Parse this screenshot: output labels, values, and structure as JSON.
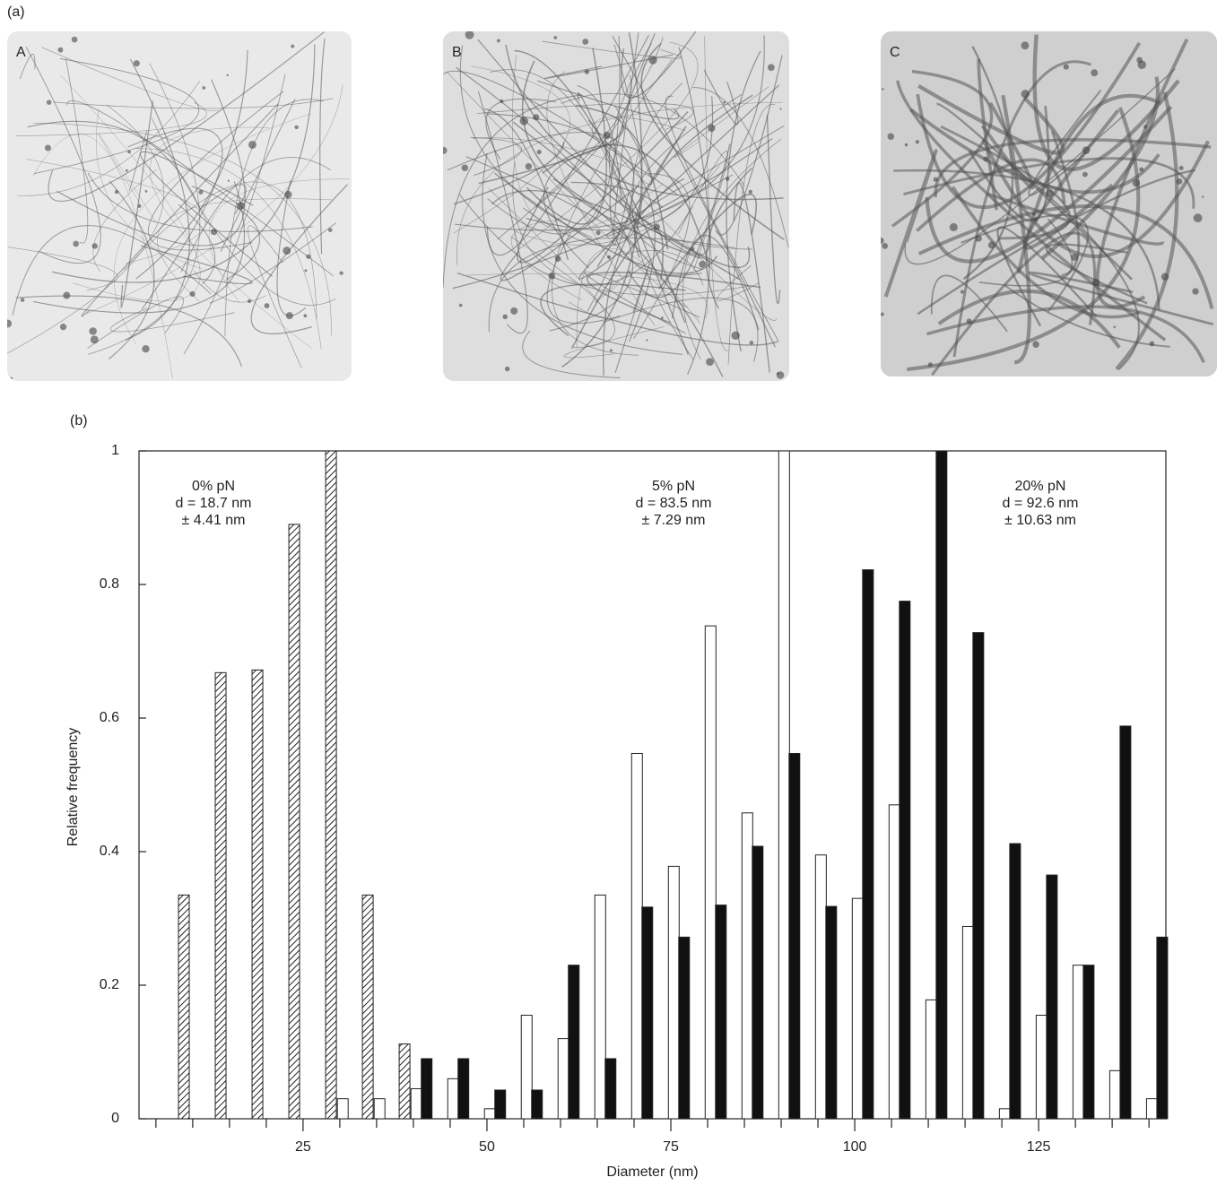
{
  "figure_label_a": "(a)",
  "panels": [
    {
      "label": "A"
    },
    {
      "label": "B"
    },
    {
      "label": "C"
    }
  ],
  "chart_data": {
    "type": "bar",
    "panel_label": "(b)",
    "x_label": "Diameter (nm)",
    "y_label": "Relative frequency",
    "xlim": [
      2.7,
      142.3
    ],
    "ylim": [
      0,
      1
    ],
    "xticks": [
      25,
      50,
      75,
      100,
      125
    ],
    "xminorticks": [
      5,
      10,
      15,
      20,
      30,
      35,
      40,
      45,
      55,
      60,
      65,
      70,
      80,
      85,
      90,
      95,
      105,
      110,
      115,
      120,
      130,
      135,
      140
    ],
    "yticks": [
      0,
      0.2,
      0.4,
      0.6,
      0.8,
      1
    ],
    "grid": false,
    "series": [
      {
        "name": "0% pN",
        "lines": [
          "d = 18.7 nm",
          "± 4.41 nm"
        ],
        "color": "#ffffff",
        "hatch": true,
        "x": [
          8.8,
          13.8,
          18.8,
          23.8,
          28.8,
          33.8,
          38.8
        ],
        "values": [
          0.335,
          0.668,
          0.672,
          0.89,
          1.0,
          0.335,
          0.112
        ]
      },
      {
        "name": "5% pN",
        "lines": [
          "d = 83.5 nm",
          "± 7.29 nm"
        ],
        "color": "#ffffff",
        "hatch": false,
        "x": [
          30.4,
          35.4,
          40.4,
          45.4,
          50.4,
          55.4,
          60.4,
          65.4,
          70.4,
          75.4,
          80.4,
          85.4,
          90.4,
          95.4,
          100.4,
          105.4,
          110.4,
          115.4,
          120.4,
          125.4,
          130.4,
          135.4,
          140.4
        ],
        "values": [
          0.03,
          0.03,
          0.045,
          0.06,
          0.015,
          0.155,
          0.12,
          0.335,
          0.547,
          0.378,
          0.738,
          0.458,
          1.0,
          0.395,
          0.33,
          0.47,
          0.178,
          0.288,
          0.015,
          0.155,
          0.23,
          0.072,
          0.03
        ]
      },
      {
        "name": "20% pN",
        "lines": [
          "d = 92.6 nm",
          "± 10.63 nm"
        ],
        "color": "#111111",
        "hatch": false,
        "x": [
          41.8,
          46.8,
          51.8,
          56.8,
          61.8,
          66.8,
          71.8,
          76.8,
          81.8,
          86.8,
          91.8,
          96.8,
          101.8,
          106.8,
          111.8,
          116.8,
          121.8,
          126.8,
          131.8,
          136.8,
          141.8
        ],
        "values": [
          0.09,
          0.09,
          0.043,
          0.043,
          0.23,
          0.09,
          0.317,
          0.272,
          0.32,
          0.408,
          0.547,
          0.318,
          0.822,
          0.775,
          1.0,
          0.728,
          0.412,
          0.365,
          0.23,
          0.588,
          0.272
        ]
      }
    ]
  }
}
